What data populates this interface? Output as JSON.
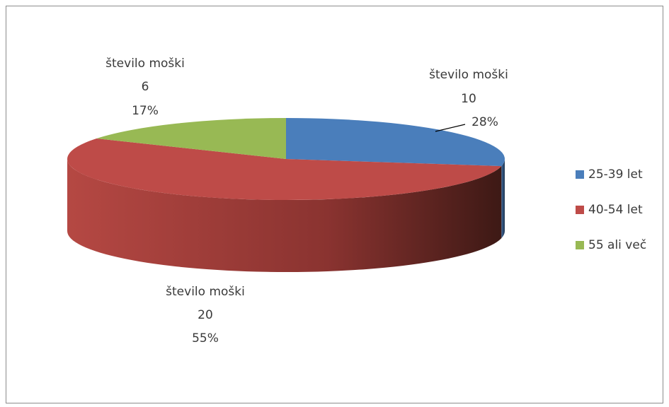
{
  "chart_data": {
    "type": "pie3d",
    "categories": [
      "25-39 let",
      "40-54 let",
      "55 ali več"
    ],
    "series": [
      {
        "name": "število moški",
        "values": [
          10,
          20,
          6
        ],
        "percent_labels": [
          "28%",
          "55%",
          "17%"
        ]
      }
    ],
    "colors": [
      "#4a7ebb",
      "#be4b48",
      "#98b954"
    ],
    "legend": "right"
  }
}
